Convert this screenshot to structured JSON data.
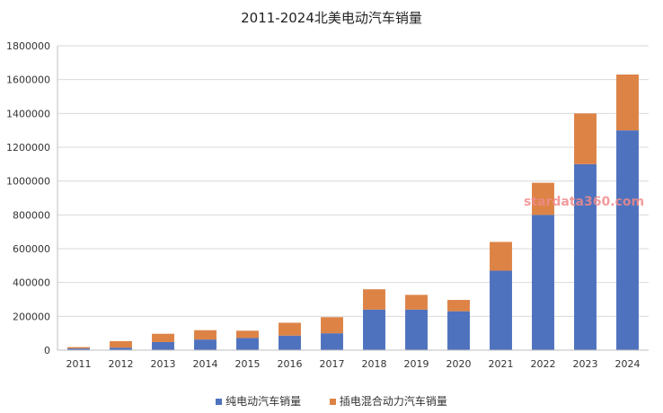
{
  "chart_data": {
    "type": "bar",
    "stacked": true,
    "title": "2011-2024北美电动汽车销量",
    "categories": [
      "2011",
      "2012",
      "2013",
      "2014",
      "2015",
      "2016",
      "2017",
      "2018",
      "2019",
      "2020",
      "2021",
      "2022",
      "2023",
      "2024"
    ],
    "series": [
      {
        "name": "纯电动汽车销量",
        "color": "#4f72be",
        "values": [
          10000,
          15000,
          48000,
          63000,
          72000,
          86000,
          100000,
          240000,
          240000,
          230000,
          470000,
          800000,
          1100000,
          1300000
        ]
      },
      {
        "name": "插电混合动力汽车销量",
        "color": "#dd8346",
        "values": [
          8000,
          38000,
          49000,
          55000,
          43000,
          76000,
          95000,
          120000,
          87000,
          67000,
          170000,
          190000,
          300000,
          330000
        ]
      }
    ],
    "ylim": [
      0,
      1800000
    ],
    "yticks": [
      "0",
      "200000",
      "400000",
      "600000",
      "800000",
      "1000000",
      "1200000",
      "1400000",
      "1600000",
      "1800000"
    ],
    "grid": true,
    "legend_position": "bottom",
    "watermark": "stardata360.com"
  }
}
